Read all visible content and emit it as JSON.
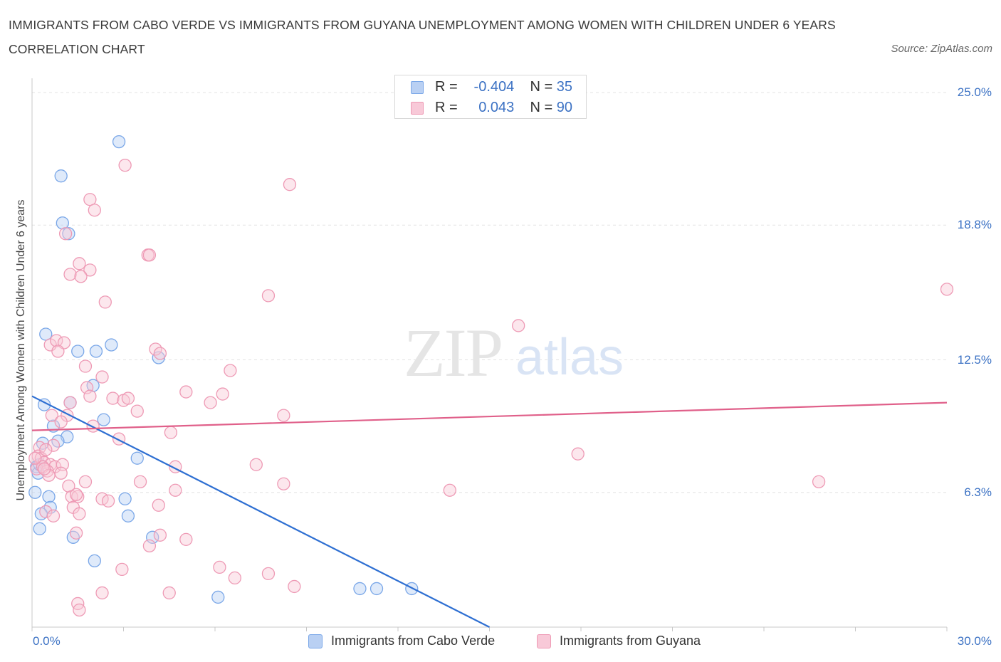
{
  "chart_data": {
    "type": "scatter",
    "title": "IMMIGRANTS FROM CABO VERDE VS IMMIGRANTS FROM GUYANA UNEMPLOYMENT AMONG WOMEN WITH CHILDREN UNDER 6 YEARS CORRELATION CHART",
    "source": "Source: ZipAtlas.com",
    "watermark": {
      "zip": "ZIP",
      "atlas": "atlas"
    },
    "ylabel": "Unemployment Among Women with Children Under 6 years",
    "xlim": [
      0,
      30
    ],
    "ylim": [
      0,
      25.5
    ],
    "x_tick_labels": {
      "min": "0.0%",
      "max": "30.0%"
    },
    "y_ticks": [
      {
        "value": 6.3,
        "label": "6.3%"
      },
      {
        "value": 12.5,
        "label": "12.5%"
      },
      {
        "value": 18.8,
        "label": "18.8%"
      },
      {
        "value": 25.0,
        "label": "25.0%"
      }
    ],
    "grid": true,
    "series": [
      {
        "name": "Immigrants from Cabo Verde",
        "color": "#7aa7e8",
        "fill": "#b9d0f3",
        "line_color": "#2e6fd2",
        "stats": {
          "r_label": "R =",
          "r": "-0.404",
          "n_label": "N =",
          "n": "35"
        },
        "trend": {
          "x": [
            0,
            15
          ],
          "y": [
            10.8,
            0
          ]
        },
        "points": [
          [
            2.85,
            22.7
          ],
          [
            0.95,
            21.1
          ],
          [
            1.0,
            18.9
          ],
          [
            1.2,
            18.4
          ],
          [
            0.45,
            13.7
          ],
          [
            2.6,
            13.2
          ],
          [
            1.5,
            12.9
          ],
          [
            2.1,
            12.9
          ],
          [
            4.15,
            12.6
          ],
          [
            0.4,
            10.4
          ],
          [
            1.25,
            10.5
          ],
          [
            2.0,
            11.3
          ],
          [
            2.35,
            9.7
          ],
          [
            0.7,
            9.4
          ],
          [
            1.15,
            8.9
          ],
          [
            0.85,
            8.7
          ],
          [
            0.35,
            8.6
          ],
          [
            0.15,
            7.5
          ],
          [
            0.2,
            7.2
          ],
          [
            0.25,
            7.6
          ],
          [
            3.45,
            7.9
          ],
          [
            0.1,
            6.3
          ],
          [
            0.55,
            6.1
          ],
          [
            3.05,
            6.0
          ],
          [
            0.6,
            5.6
          ],
          [
            0.3,
            5.3
          ],
          [
            3.15,
            5.2
          ],
          [
            0.25,
            4.6
          ],
          [
            1.35,
            4.2
          ],
          [
            3.95,
            4.2
          ],
          [
            2.05,
            3.1
          ],
          [
            6.1,
            1.4
          ],
          [
            10.75,
            1.8
          ],
          [
            11.3,
            1.8
          ],
          [
            12.45,
            1.8
          ]
        ]
      },
      {
        "name": "Immigrants from Guyana",
        "color": "#ee9ab5",
        "fill": "#f8c9d8",
        "line_color": "#e0608a",
        "stats": {
          "r_label": "R =",
          "r": "0.043",
          "n_label": "N =",
          "n": "90"
        },
        "trend": {
          "x": [
            0,
            30
          ],
          "y": [
            9.2,
            10.5
          ]
        },
        "points": [
          [
            3.05,
            21.6
          ],
          [
            8.45,
            20.7
          ],
          [
            1.9,
            20.0
          ],
          [
            2.05,
            19.5
          ],
          [
            1.1,
            18.4
          ],
          [
            3.8,
            17.4
          ],
          [
            3.85,
            17.4
          ],
          [
            1.55,
            17.0
          ],
          [
            1.9,
            16.7
          ],
          [
            1.25,
            16.5
          ],
          [
            1.6,
            16.4
          ],
          [
            7.75,
            15.5
          ],
          [
            30.0,
            15.8
          ],
          [
            2.4,
            15.2
          ],
          [
            15.95,
            14.1
          ],
          [
            0.6,
            13.2
          ],
          [
            0.8,
            13.4
          ],
          [
            1.05,
            13.3
          ],
          [
            0.85,
            12.9
          ],
          [
            4.05,
            13.0
          ],
          [
            4.2,
            12.8
          ],
          [
            6.5,
            12.0
          ],
          [
            1.75,
            12.2
          ],
          [
            2.3,
            11.7
          ],
          [
            1.8,
            11.2
          ],
          [
            5.05,
            11.0
          ],
          [
            6.25,
            10.9
          ],
          [
            1.9,
            10.8
          ],
          [
            2.65,
            10.7
          ],
          [
            3.0,
            10.6
          ],
          [
            3.15,
            10.7
          ],
          [
            5.85,
            10.5
          ],
          [
            0.65,
            9.9
          ],
          [
            1.15,
            9.9
          ],
          [
            3.45,
            10.1
          ],
          [
            8.25,
            9.9
          ],
          [
            1.25,
            10.5
          ],
          [
            0.95,
            9.6
          ],
          [
            2.0,
            9.4
          ],
          [
            4.55,
            9.1
          ],
          [
            2.85,
            8.8
          ],
          [
            0.25,
            8.4
          ],
          [
            0.7,
            8.5
          ],
          [
            17.9,
            8.1
          ],
          [
            0.2,
            8.0
          ],
          [
            0.3,
            7.9
          ],
          [
            0.4,
            7.7
          ],
          [
            0.6,
            7.6
          ],
          [
            0.75,
            7.5
          ],
          [
            1.0,
            7.6
          ],
          [
            0.15,
            7.4
          ],
          [
            0.5,
            7.3
          ],
          [
            0.35,
            7.5
          ],
          [
            4.7,
            7.5
          ],
          [
            7.35,
            7.6
          ],
          [
            0.55,
            7.1
          ],
          [
            1.75,
            6.8
          ],
          [
            3.55,
            6.8
          ],
          [
            8.25,
            6.7
          ],
          [
            25.8,
            6.8
          ],
          [
            1.2,
            6.6
          ],
          [
            4.7,
            6.4
          ],
          [
            13.7,
            6.4
          ],
          [
            1.3,
            6.1
          ],
          [
            1.5,
            6.1
          ],
          [
            1.45,
            6.2
          ],
          [
            2.3,
            6.0
          ],
          [
            2.5,
            5.9
          ],
          [
            4.15,
            5.7
          ],
          [
            1.35,
            5.6
          ],
          [
            0.45,
            5.4
          ],
          [
            1.55,
            5.3
          ],
          [
            0.7,
            5.2
          ],
          [
            1.45,
            4.4
          ],
          [
            4.2,
            4.3
          ],
          [
            5.05,
            4.1
          ],
          [
            3.85,
            3.8
          ],
          [
            2.95,
            2.7
          ],
          [
            6.15,
            2.8
          ],
          [
            7.75,
            2.5
          ],
          [
            6.65,
            2.3
          ],
          [
            8.6,
            1.9
          ],
          [
            2.3,
            1.6
          ],
          [
            4.5,
            1.6
          ],
          [
            1.5,
            1.1
          ],
          [
            1.55,
            0.8
          ],
          [
            0.1,
            7.9
          ],
          [
            0.45,
            8.3
          ],
          [
            0.95,
            7.2
          ],
          [
            0.4,
            7.4
          ]
        ]
      }
    ]
  }
}
